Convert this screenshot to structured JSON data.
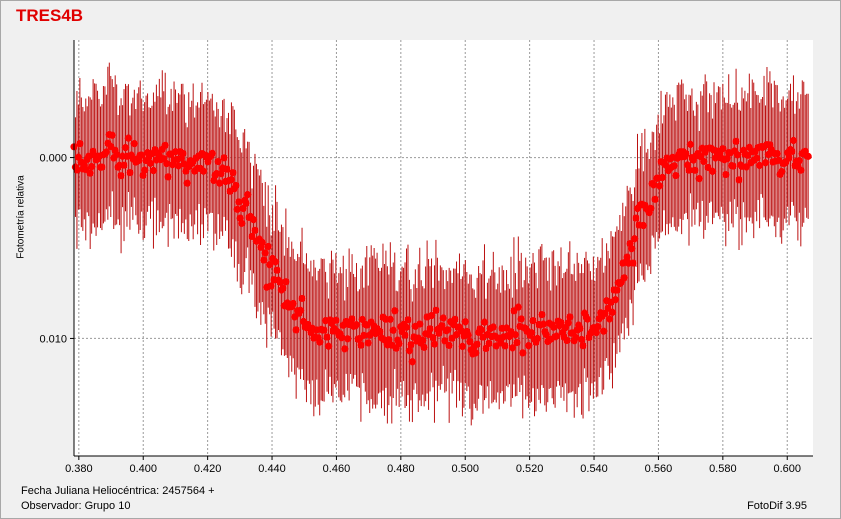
{
  "chart_data": {
    "type": "scatter",
    "title": "TRES4B",
    "ylabel": "Fotometría relativa",
    "xlabel": "Fecha Juliana Heliocéntrica: 2457564 +",
    "observer": "Observador: Grupo 10",
    "software": "FotoDif 3.95",
    "x_ticks": [
      "0.380",
      "0.400",
      "0.420",
      "0.440",
      "0.460",
      "0.480",
      "0.500",
      "0.520",
      "0.540",
      "0.560",
      "0.580",
      "0.600"
    ],
    "y_ticks": [
      "0.000",
      "0.010"
    ],
    "xlim": [
      0.3785,
      0.608
    ],
    "ylim": [
      -0.0065,
      0.0165
    ],
    "y_inverted": true,
    "grid": true,
    "error_bars": true,
    "marker_color": "#ff0000",
    "errorbar_color": "#bb1111",
    "transit": {
      "ingress_start": 0.418,
      "ingress_end": 0.455,
      "egress_start": 0.538,
      "egress_end": 0.566,
      "depth": 0.0098,
      "typical_error": 0.0035,
      "scatter": 0.0011,
      "n_points": 500
    }
  }
}
